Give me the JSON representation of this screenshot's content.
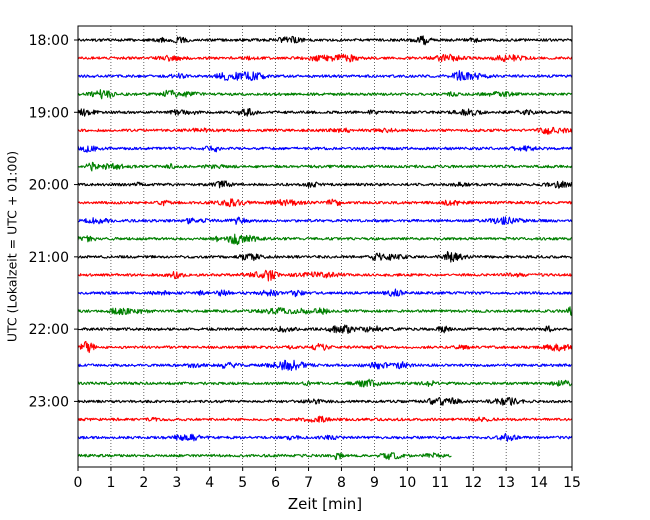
{
  "chart_data": {
    "type": "line",
    "title": "",
    "xlabel": "Zeit  [min]",
    "ylabel": "UTC (Lokalzeit = UTC + 01:00)",
    "xlim": [
      0,
      15
    ],
    "xticks": [
      "0",
      "1",
      "2",
      "3",
      "4",
      "5",
      "6",
      "7",
      "8",
      "9",
      "10",
      "11",
      "12",
      "13",
      "14",
      "15"
    ],
    "yticks": [
      "18:00",
      "19:00",
      "20:00",
      "21:00",
      "22:00",
      "23:00"
    ],
    "grid": "vertical dotted",
    "trace_colors": [
      "#000000",
      "#ff0000",
      "#0000ff",
      "#008000"
    ],
    "traces": [
      {
        "start": "18:00",
        "x_end": 15
      },
      {
        "start": "18:15",
        "x_end": 15
      },
      {
        "start": "18:30",
        "x_end": 15
      },
      {
        "start": "18:45",
        "x_end": 15
      },
      {
        "start": "19:00",
        "x_end": 15
      },
      {
        "start": "19:15",
        "x_end": 15
      },
      {
        "start": "19:30",
        "x_end": 15
      },
      {
        "start": "19:45",
        "x_end": 15
      },
      {
        "start": "20:00",
        "x_end": 15
      },
      {
        "start": "20:15",
        "x_end": 15
      },
      {
        "start": "20:30",
        "x_end": 15
      },
      {
        "start": "20:45",
        "x_end": 15
      },
      {
        "start": "21:00",
        "x_end": 15
      },
      {
        "start": "21:15",
        "x_end": 15
      },
      {
        "start": "21:30",
        "x_end": 15
      },
      {
        "start": "21:45",
        "x_end": 15
      },
      {
        "start": "22:00",
        "x_end": 15
      },
      {
        "start": "22:15",
        "x_end": 15
      },
      {
        "start": "22:30",
        "x_end": 15
      },
      {
        "start": "22:45",
        "x_end": 15
      },
      {
        "start": "23:00",
        "x_end": 15
      },
      {
        "start": "23:15",
        "x_end": 15
      },
      {
        "start": "23:30",
        "x_end": 15
      },
      {
        "start": "23:45",
        "x_end": 11.35
      }
    ]
  }
}
